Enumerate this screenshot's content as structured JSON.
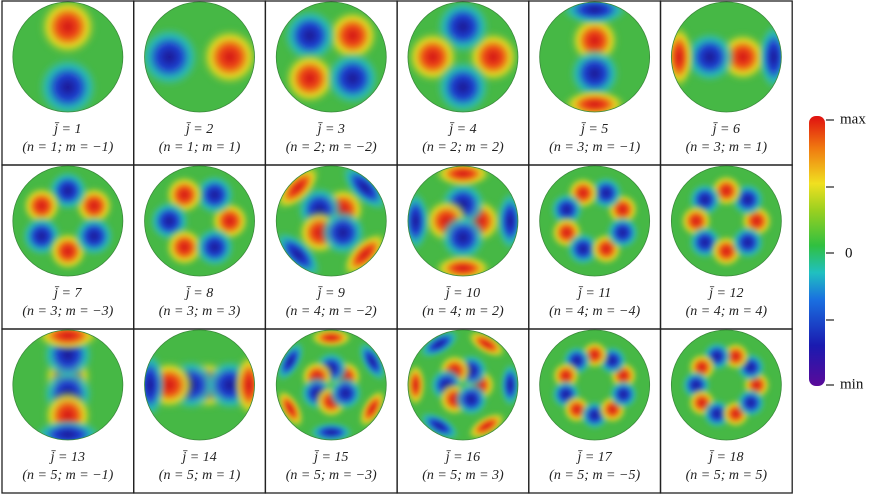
{
  "cells": [
    {
      "index": "j̄ = 1",
      "orders": "(n = 1; m = −1)"
    },
    {
      "index": "j̄ = 2",
      "orders": "(n = 1; m = 1)"
    },
    {
      "index": "j̄ = 3",
      "orders": "(n = 2; m = −2)"
    },
    {
      "index": "j̄ = 4",
      "orders": "(n = 2; m = 2)"
    },
    {
      "index": "j̄ = 5",
      "orders": "(n = 3; m = −1)"
    },
    {
      "index": "j̄ = 6",
      "orders": "(n = 3; m = 1)"
    },
    {
      "index": "j̄ = 7",
      "orders": "(n = 3; m = −3)"
    },
    {
      "index": "j̄ = 8",
      "orders": "(n = 3; m = 3)"
    },
    {
      "index": "j̄ = 9",
      "orders": "(n = 4; m = −2)"
    },
    {
      "index": "j̄ = 10",
      "orders": "(n = 4; m = 2)"
    },
    {
      "index": "j̄ = 11",
      "orders": "(n = 4; m = −4)"
    },
    {
      "index": "j̄ = 12",
      "orders": "(n = 4; m = 4)"
    },
    {
      "index": "j̄ = 13",
      "orders": "(n = 5; m = −1)"
    },
    {
      "index": "j̄ = 14",
      "orders": "(n = 5; m = 1)"
    },
    {
      "index": "j̄ = 15",
      "orders": "(n = 5; m = −3)"
    },
    {
      "index": "j̄ = 16",
      "orders": "(n = 5; m = 3)"
    },
    {
      "index": "j̄ = 17",
      "orders": "(n = 5; m = −5)"
    },
    {
      "index": "j̄ = 18",
      "orders": "(n = 5; m = 5)"
    }
  ],
  "colorbar": {
    "max": "max",
    "zero": "0",
    "min": "min"
  }
}
